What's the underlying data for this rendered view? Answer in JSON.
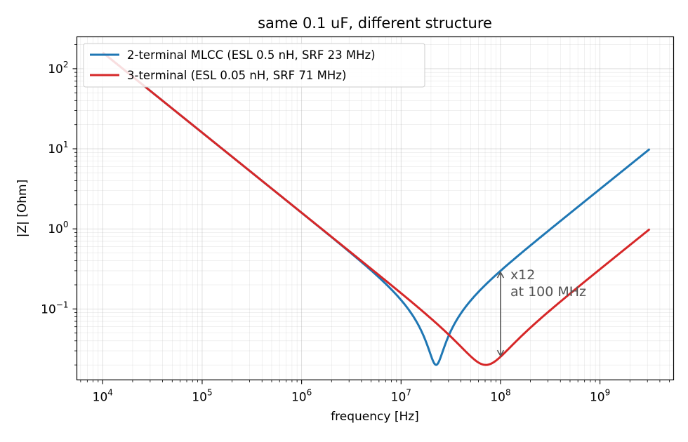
{
  "chart_data": {
    "type": "line",
    "title": "same 0.1 uF, different structure",
    "xlabel": "frequency [Hz]",
    "ylabel": "|Z| [Ohm]",
    "xscale": "log",
    "yscale": "log",
    "xlim": [
      5500,
      5500000000
    ],
    "ylim": [
      0.013,
      250
    ],
    "grid": "major and minor",
    "legend_position": "top-left",
    "x_ticks": [
      {
        "base": "10",
        "exp": "4",
        "value": 10000
      },
      {
        "base": "10",
        "exp": "5",
        "value": 100000
      },
      {
        "base": "10",
        "exp": "6",
        "value": 1000000
      },
      {
        "base": "10",
        "exp": "7",
        "value": 10000000
      },
      {
        "base": "10",
        "exp": "8",
        "value": 100000000
      },
      {
        "base": "10",
        "exp": "9",
        "value": 1000000000
      }
    ],
    "y_ticks": [
      {
        "base": "10",
        "exp": "−1",
        "value": 0.1
      },
      {
        "base": "10",
        "exp": "0",
        "value": 1
      },
      {
        "base": "10",
        "exp": "1",
        "value": 10
      },
      {
        "base": "10",
        "exp": "2",
        "value": 100
      }
    ],
    "series": [
      {
        "name": "2-terminal MLCC (ESL 0.5 nH, SRF 23 MHz)",
        "color": "#1f77b4",
        "capacitance_F": 1e-07,
        "esl_H": 5e-10,
        "esr_Ohm": 0.02,
        "x_range": [
          10000,
          3162000000
        ],
        "points": [
          [
            10000,
            159.2
          ],
          [
            100000,
            15.92
          ],
          [
            1000000,
            1.59
          ],
          [
            10000000,
            0.152
          ],
          [
            22500000,
            0.02
          ],
          [
            100000000,
            0.299
          ],
          [
            1000000000,
            3.14
          ],
          [
            3162000000,
            9.93
          ]
        ]
      },
      {
        "name": "3-terminal (ESL 0.05 nH, SRF 71 MHz)",
        "color": "#d62728",
        "capacitance_F": 1e-07,
        "esl_H": 5e-11,
        "esr_Ohm": 0.02,
        "x_range": [
          10000,
          3162000000
        ],
        "points": [
          [
            10000,
            159.2
          ],
          [
            100000,
            15.92
          ],
          [
            1000000,
            1.59
          ],
          [
            10000000,
            0.159
          ],
          [
            71200000,
            0.02
          ],
          [
            100000000,
            0.025
          ],
          [
            1000000000,
            0.314
          ],
          [
            3162000000,
            0.993
          ]
        ]
      }
    ],
    "annotation": {
      "line1": "x12",
      "line2": "at 100 MHz",
      "x": 100000000,
      "y_from": 0.025,
      "y_to": 0.299,
      "color": "#555555"
    }
  }
}
